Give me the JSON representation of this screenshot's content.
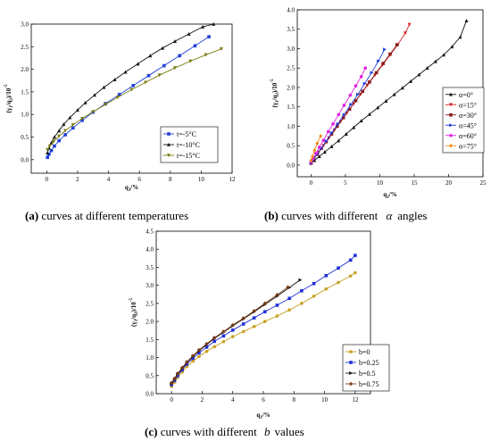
{
  "figure": {
    "captions": [
      {
        "prefix": "(a)",
        "text": " curves at different temperatures",
        "sym": ""
      },
      {
        "prefix": "(b)",
        "text": " curves with different ",
        "sym": "α",
        "suffix": "angles"
      },
      {
        "prefix": "(c)",
        "text": " curves with different ",
        "sym": "b",
        "suffix": "values"
      }
    ]
  },
  "chart_data": [
    {
      "type": "line",
      "xlabel": "q",
      "xlabel_sub": "J",
      "xlabel_unit": "/%",
      "ylabel": "(γ",
      "ylabel_sub": "J",
      "ylabel_mid": "/q",
      "ylabel_sub2": "J",
      "ylabel_end": ")/10",
      "ylabel_sup": "-5",
      "xlim": [
        -1,
        12
      ],
      "ylim": [
        -0.3,
        3.0
      ],
      "xticks": [
        "0",
        "2",
        "4",
        "6",
        "8",
        "10",
        "12"
      ],
      "yticks": [
        "0.0",
        "0.5",
        "1.0",
        "1.5",
        "2.0",
        "2.5",
        "3.0"
      ],
      "legend_position": "bottom-right",
      "series": [
        {
          "name": "t=-5°C",
          "color": "#1f3fd6",
          "marker": "square",
          "x": [
            0.05,
            0.15,
            0.3,
            0.5,
            0.8,
            1.2,
            1.7,
            2.3,
            3.0,
            3.8,
            4.7,
            5.6,
            6.6,
            7.6,
            8.6,
            9.6,
            10.5
          ],
          "y": [
            0.05,
            0.12,
            0.2,
            0.3,
            0.42,
            0.55,
            0.7,
            0.87,
            1.05,
            1.24,
            1.44,
            1.64,
            1.86,
            2.08,
            2.3,
            2.52,
            2.72
          ]
        },
        {
          "name": "t=-10°C",
          "color": "#111111",
          "marker": "triangle-up",
          "x": [
            0.05,
            0.15,
            0.3,
            0.5,
            0.8,
            1.1,
            1.5,
            2.0,
            2.5,
            3.1,
            3.7,
            4.4,
            5.1,
            5.9,
            6.7,
            7.5,
            8.3,
            9.2,
            10.1,
            10.8
          ],
          "y": [
            0.15,
            0.26,
            0.37,
            0.5,
            0.64,
            0.78,
            0.93,
            1.1,
            1.26,
            1.43,
            1.6,
            1.77,
            1.94,
            2.12,
            2.3,
            2.47,
            2.62,
            2.78,
            2.94,
            3.0
          ]
        },
        {
          "name": "t=-15°C",
          "color": "#7a7a10",
          "marker": "triangle-down",
          "x": [
            0.05,
            0.2,
            0.45,
            0.8,
            1.2,
            1.7,
            2.3,
            3.0,
            3.8,
            4.6,
            5.5,
            6.4,
            7.3,
            8.3,
            9.3,
            10.3,
            11.3
          ],
          "y": [
            0.22,
            0.3,
            0.4,
            0.52,
            0.64,
            0.77,
            0.91,
            1.06,
            1.22,
            1.38,
            1.55,
            1.71,
            1.87,
            2.03,
            2.18,
            2.32,
            2.45
          ]
        }
      ]
    },
    {
      "type": "line",
      "xlabel": "q",
      "xlabel_sub": "J",
      "xlabel_unit": "/%",
      "ylabel": "(γ",
      "ylabel_sub": "J",
      "ylabel_mid": "/q",
      "ylabel_sub2": "J",
      "ylabel_end": ")/10",
      "ylabel_sup": "-5",
      "xlim": [
        -2,
        25
      ],
      "ylim": [
        -0.3,
        4.0
      ],
      "xticks": [
        "0",
        "5",
        "10",
        "15",
        "20",
        "25"
      ],
      "yticks": [
        "0.0",
        "0.5",
        "1.0",
        "1.5",
        "2.0",
        "2.5",
        "3.0",
        "3.5",
        "4.0"
      ],
      "legend_position": "right",
      "series": [
        {
          "name": "α=0°",
          "color": "#111111",
          "marker": "triangle-up",
          "x": [
            0.0,
            0.5,
            1.2,
            2.0,
            3.0,
            4.0,
            5.1,
            6.2,
            7.3,
            8.5,
            9.7,
            10.9,
            12.1,
            13.3,
            14.5,
            15.7,
            16.9,
            18.1,
            19.3,
            20.5,
            21.7,
            22.6
          ],
          "y": [
            0.05,
            0.12,
            0.22,
            0.34,
            0.48,
            0.63,
            0.8,
            0.97,
            1.14,
            1.31,
            1.48,
            1.65,
            1.82,
            1.99,
            2.16,
            2.33,
            2.5,
            2.67,
            2.84,
            3.05,
            3.3,
            3.72
          ]
        },
        {
          "name": "α=15°",
          "color": "#d62020",
          "marker": "triangle-down",
          "x": [
            0.0,
            0.5,
            1.1,
            1.8,
            2.6,
            3.4,
            4.3,
            5.2,
            6.2,
            7.2,
            8.2,
            9.3,
            10.4,
            11.5,
            12.6,
            13.7,
            14.3
          ],
          "y": [
            0.05,
            0.18,
            0.33,
            0.5,
            0.7,
            0.9,
            1.12,
            1.34,
            1.58,
            1.82,
            2.06,
            2.32,
            2.58,
            2.84,
            3.1,
            3.4,
            3.62
          ]
        },
        {
          "name": "α=30°",
          "color": "#8b1a1a",
          "marker": "square",
          "x": [
            0.0,
            0.4,
            0.9,
            1.5,
            2.2,
            3.0,
            3.8,
            4.7,
            5.6,
            6.5,
            7.5,
            8.5,
            9.5,
            10.5,
            11.5,
            12.5
          ],
          "y": [
            0.05,
            0.15,
            0.28,
            0.43,
            0.6,
            0.8,
            1.0,
            1.22,
            1.44,
            1.66,
            1.9,
            2.14,
            2.38,
            2.62,
            2.86,
            3.1
          ]
        },
        {
          "name": "α=45°",
          "color": "#1f3fd6",
          "marker": "triangle-right",
          "x": [
            0.0,
            0.4,
            0.9,
            1.5,
            2.2,
            3.0,
            3.9,
            4.8,
            5.8,
            6.8,
            7.8,
            8.8,
            9.8,
            10.7
          ],
          "y": [
            0.05,
            0.15,
            0.28,
            0.44,
            0.62,
            0.83,
            1.06,
            1.3,
            1.56,
            1.82,
            2.1,
            2.38,
            2.68,
            2.98
          ]
        },
        {
          "name": "α=60°",
          "color": "#e020e0",
          "marker": "circle",
          "x": [
            0.0,
            0.3,
            0.7,
            1.2,
            1.8,
            2.5,
            3.2,
            4.0,
            4.8,
            5.7,
            6.5,
            7.3,
            7.9
          ],
          "y": [
            0.08,
            0.17,
            0.3,
            0.46,
            0.64,
            0.86,
            1.06,
            1.3,
            1.54,
            1.8,
            2.04,
            2.28,
            2.5
          ]
        },
        {
          "name": "α=75°",
          "color": "#f08a1c",
          "marker": "diamond",
          "x": [
            0.0,
            0.2,
            0.5,
            0.9,
            1.4
          ],
          "y": [
            0.12,
            0.22,
            0.38,
            0.56,
            0.75
          ]
        }
      ]
    },
    {
      "type": "line",
      "xlabel": "q",
      "xlabel_sub": "J",
      "xlabel_unit": "/%",
      "ylabel": "(γ",
      "ylabel_sub": "J",
      "ylabel_mid": "/q",
      "ylabel_sub2": "J",
      "ylabel_end": ")/10",
      "ylabel_sup": "-5",
      "xlim": [
        -1,
        13
      ],
      "ylim": [
        0,
        4.5
      ],
      "xticks": [
        "0",
        "2",
        "4",
        "6",
        "8",
        "10",
        "12"
      ],
      "yticks": [
        "0.0",
        "0.5",
        "1.0",
        "1.5",
        "2.0",
        "2.5",
        "3.0",
        "3.5",
        "4.0",
        "4.5"
      ],
      "legend_position": "bottom-right",
      "series": [
        {
          "name": "b=0",
          "color": "#c8a020",
          "marker": "circle",
          "x": [
            0.0,
            0.2,
            0.4,
            0.7,
            1.0,
            1.4,
            1.8,
            2.3,
            2.8,
            3.4,
            4.0,
            4.7,
            5.4,
            6.1,
            6.9,
            7.7,
            8.5,
            9.3,
            10.1,
            10.9,
            11.7,
            12.0
          ],
          "y": [
            0.2,
            0.32,
            0.45,
            0.6,
            0.75,
            0.9,
            1.03,
            1.17,
            1.3,
            1.44,
            1.58,
            1.72,
            1.86,
            2.0,
            2.15,
            2.32,
            2.5,
            2.7,
            2.9,
            3.08,
            3.26,
            3.35
          ]
        },
        {
          "name": "b=0.25",
          "color": "#2030d8",
          "marker": "square",
          "x": [
            0.0,
            0.2,
            0.4,
            0.7,
            1.0,
            1.4,
            1.8,
            2.3,
            2.8,
            3.4,
            4.0,
            4.7,
            5.4,
            6.1,
            6.9,
            7.7,
            8.5,
            9.3,
            10.1,
            10.9,
            11.7,
            12.0
          ],
          "y": [
            0.25,
            0.37,
            0.5,
            0.66,
            0.82,
            0.98,
            1.13,
            1.29,
            1.45,
            1.6,
            1.76,
            1.93,
            2.1,
            2.27,
            2.45,
            2.64,
            2.85,
            3.05,
            3.27,
            3.48,
            3.7,
            3.83
          ]
        },
        {
          "name": "b=0.5",
          "color": "#111111",
          "marker": "triangle-right",
          "x": [
            0.0,
            0.2,
            0.4,
            0.7,
            1.0,
            1.4,
            1.8,
            2.3,
            2.8,
            3.4,
            4.0,
            4.7,
            5.4,
            6.1,
            6.9,
            7.7,
            8.4
          ],
          "y": [
            0.28,
            0.4,
            0.54,
            0.7,
            0.86,
            1.03,
            1.19,
            1.36,
            1.53,
            1.7,
            1.88,
            2.07,
            2.27,
            2.47,
            2.7,
            2.94,
            3.15
          ]
        },
        {
          "name": "b=0.75",
          "color": "#7a3a10",
          "marker": "diamond",
          "x": [
            0.0,
            0.2,
            0.4,
            0.7,
            1.0,
            1.4,
            1.8,
            2.3,
            2.8,
            3.4,
            4.0,
            4.7,
            5.4,
            6.1,
            6.9,
            7.6
          ],
          "y": [
            0.3,
            0.42,
            0.56,
            0.72,
            0.88,
            1.05,
            1.21,
            1.38,
            1.55,
            1.72,
            1.9,
            2.09,
            2.29,
            2.5,
            2.74,
            2.95
          ]
        }
      ]
    }
  ]
}
